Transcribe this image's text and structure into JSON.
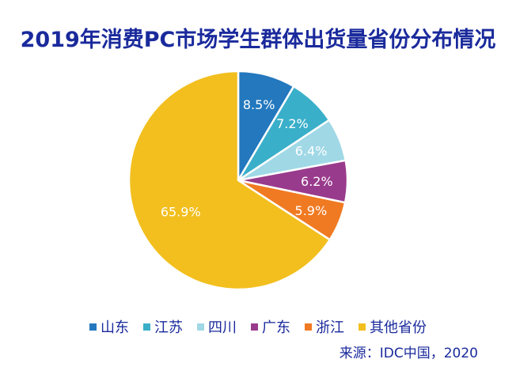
{
  "chart_data": {
    "type": "pie",
    "title": "2019年消费PC市场学生群体出货量省份分布情况",
    "categories": [
      "山东",
      "江苏",
      "四川",
      "广东",
      "浙江",
      "其他省份"
    ],
    "values": [
      8.5,
      7.2,
      6.4,
      6.2,
      5.9,
      65.9
    ],
    "value_labels": [
      "8.5%",
      "7.2%",
      "6.4%",
      "6.2%",
      "5.9%",
      "65.9%"
    ],
    "colors": [
      "#2378be",
      "#3aafc9",
      "#a0d8e6",
      "#993b8c",
      "#f07a22",
      "#f2bf1e"
    ],
    "start_angle": "12 o'clock",
    "direction": "clockwise",
    "legend_position": "bottom",
    "source": "来源：IDC中国，2020"
  }
}
